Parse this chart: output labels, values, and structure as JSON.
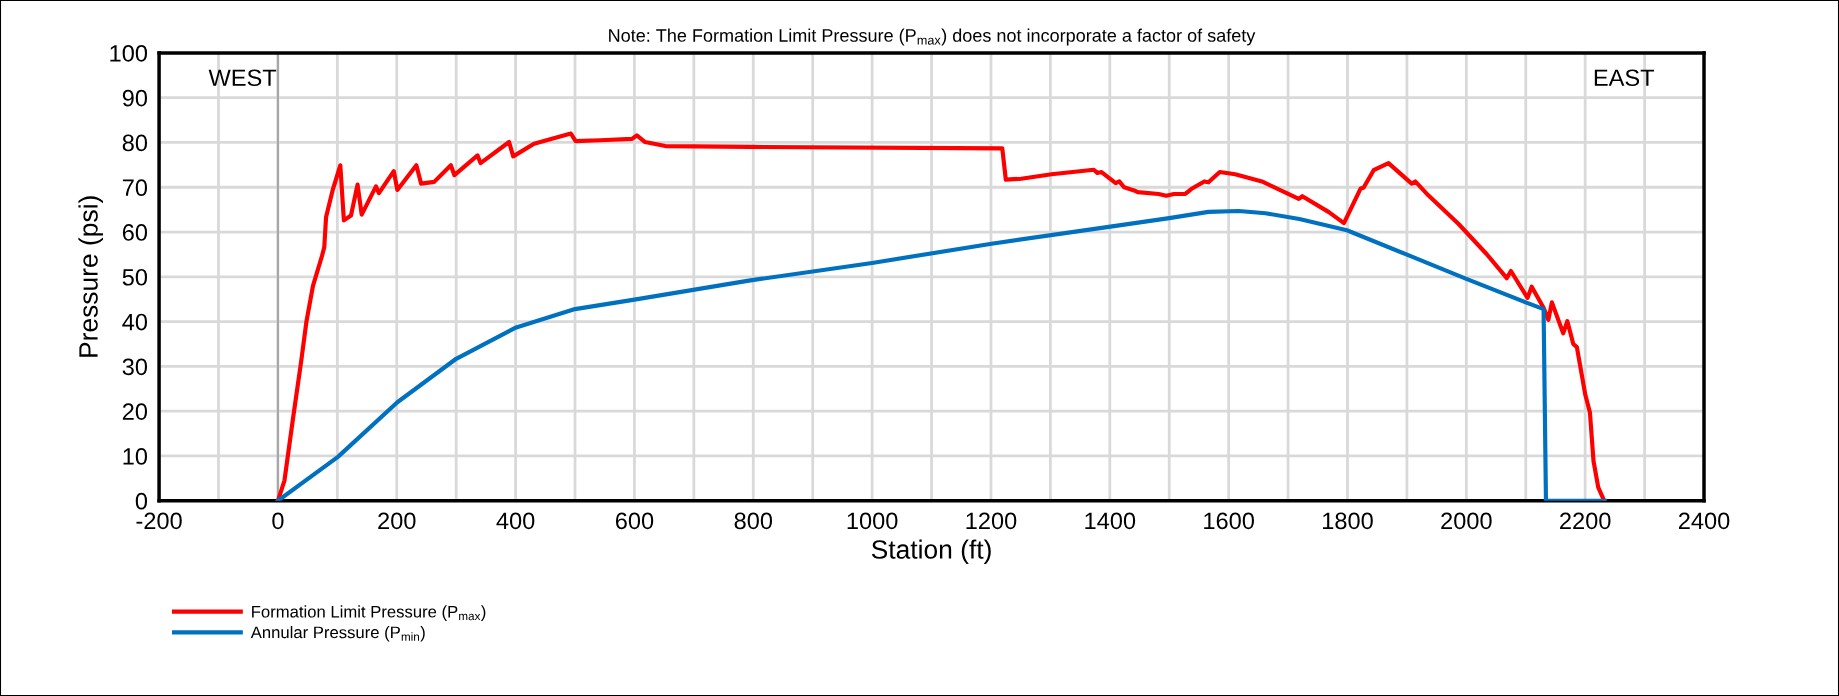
{
  "chart_data": {
    "type": "line",
    "title": "Note: The Formation Limit Pressure (P$_{max}$) does not incorporate a factor of safety",
    "xlabel": "Station (ft)",
    "ylabel": "Pressure (psi)",
    "xlim": [
      -200,
      2400
    ],
    "ylim": [
      0,
      100
    ],
    "xticks": [
      -200,
      {
        "value": -100,
        "label": null
      },
      0,
      {
        "value": 100,
        "label": null
      },
      200,
      {
        "value": 300,
        "label": null
      },
      400,
      {
        "value": 500,
        "label": null
      },
      600,
      {
        "value": 700,
        "label": null
      },
      800,
      {
        "value": 900,
        "label": null
      },
      1000,
      {
        "value": 1100,
        "label": null
      },
      1200,
      {
        "value": 1300,
        "label": null
      },
      1400,
      {
        "value": 1500,
        "label": null
      },
      1600,
      {
        "value": 1700,
        "label": null
      },
      1800,
      {
        "value": 1900,
        "label": null
      },
      2000,
      {
        "value": 2100,
        "label": null
      },
      2200,
      {
        "value": 2300,
        "label": null
      },
      2400
    ],
    "yticks": [
      0,
      10,
      20,
      30,
      40,
      50,
      60,
      70,
      80,
      90,
      100
    ],
    "grid": true,
    "legend": "bottom left",
    "marker": "none",
    "line_style": "solid",
    "ref_lines": [
      {
        "axis": "x",
        "value": 0,
        "label": null,
        "color": "#a6a6a6"
      }
    ],
    "annotations": [
      "WEST",
      "EAST"
    ],
    "series": [
      {
        "name": "Formation Limit Pressure (P$_{max}$)",
        "color": "#ff0000",
        "x": [
          0,
          11,
          25,
          39,
          48,
          59,
          74,
          78,
          81,
          92,
          105,
          111,
          123,
          134,
          141,
          165,
          170,
          195,
          201,
          233,
          241,
          263,
          291,
          297,
          336,
          341,
          389,
          396,
          431,
          493,
          501,
          543,
          596,
          604,
          618,
          652,
          795,
          1219,
          1225,
          1251,
          1302,
          1373,
          1379,
          1386,
          1410,
          1416,
          1424,
          1441,
          1447,
          1482,
          1495,
          1508,
          1527,
          1537,
          1559,
          1566,
          1585,
          1611,
          1656,
          1718,
          1724,
          1768,
          1794,
          1822,
          1827,
          1844,
          1869,
          1908,
          1914,
          1936,
          1987,
          2034,
          2068,
          2075,
          2103,
          2110,
          2130,
          2138,
          2144,
          2163,
          2170,
          2180,
          2186,
          2200,
          2208,
          2214,
          2222,
          2232
        ],
        "values": [
          0,
          4.5,
          18,
          31,
          40,
          48,
          54.6,
          56.6,
          63.3,
          69.3,
          74.9,
          62.6,
          63.7,
          70.6,
          63.9,
          70.2,
          68.7,
          73.6,
          69.4,
          74.9,
          70.8,
          71.2,
          74.9,
          72.7,
          77.1,
          75.4,
          80.1,
          76.9,
          79.7,
          82.0,
          80.3,
          80.5,
          80.8,
          81.6,
          80.1,
          79.2,
          79.0,
          78.7,
          71.7,
          71.9,
          72.9,
          73.9,
          73.2,
          73.4,
          70.9,
          71.3,
          70.0,
          69.3,
          68.9,
          68.5,
          68.1,
          68.5,
          68.5,
          69.6,
          71.3,
          71.1,
          73.4,
          72.9,
          71.3,
          67.4,
          68.0,
          64.5,
          62.0,
          69.7,
          69.9,
          73.8,
          75.4,
          70.8,
          71.3,
          68.2,
          61.8,
          55.1,
          49.7,
          51.3,
          45.3,
          47.8,
          43.1,
          40.4,
          44.3,
          37.4,
          40.1,
          35.0,
          34.3,
          23.8,
          19.7,
          8.9,
          3.0,
          0
        ]
      },
      {
        "name": "Annular Pressure (P$_{min}$)",
        "color": "#0070c0",
        "x": [
          0,
          101,
          201,
          300,
          401,
          500,
          600,
          795,
          1000,
          1201,
          1401,
          1500,
          1566,
          1617,
          1662,
          1719,
          1799,
          1899,
          1999,
          2100,
          2130,
          2134,
          2233
        ],
        "values": [
          0,
          9.8,
          22,
          31.7,
          38.7,
          42.8,
          44.9,
          49.2,
          53.1,
          57.4,
          61.2,
          63.1,
          64.5,
          64.7,
          64.2,
          62.9,
          60.4,
          55.0,
          49.6,
          44.3,
          42.8,
          0,
          0
        ]
      }
    ]
  }
}
